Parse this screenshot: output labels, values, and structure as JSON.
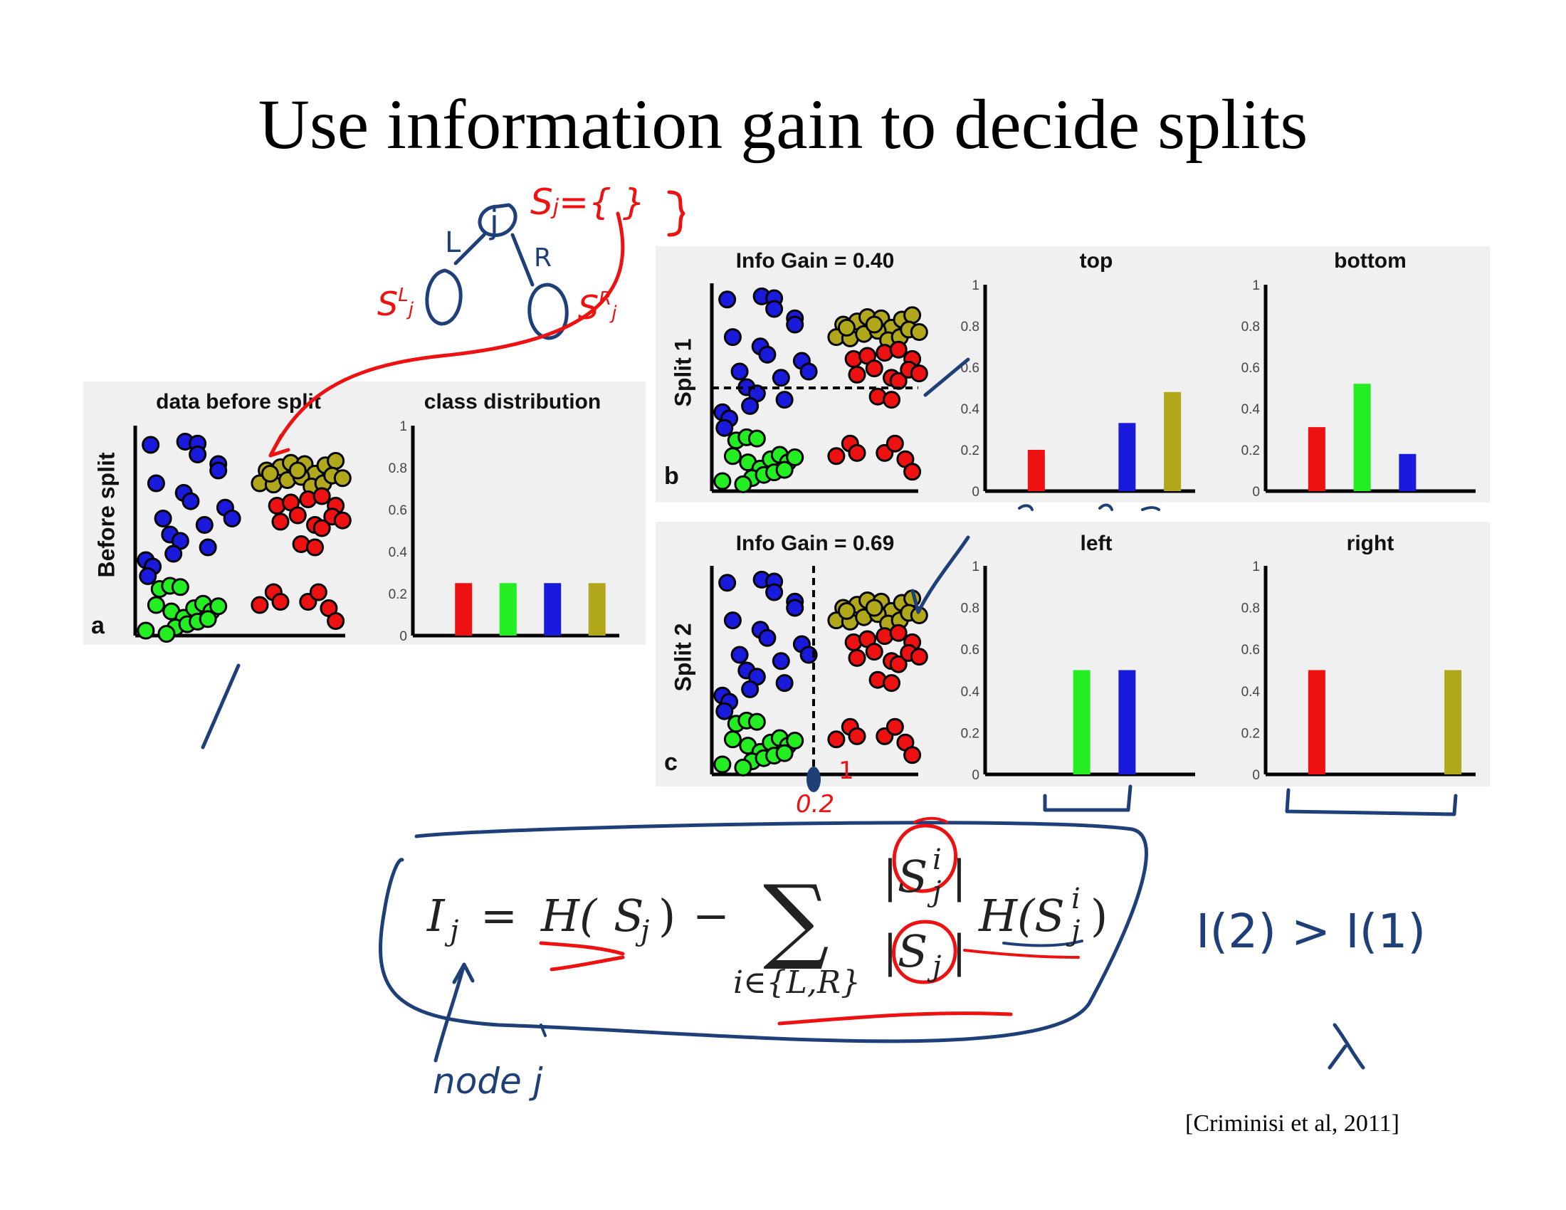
{
  "title": "Use information gain to decide splits",
  "citation": "[Criminisi et al, 2011]",
  "colors": {
    "blue": "#1a1adc",
    "green": "#22ee22",
    "red": "#ee1111",
    "olive": "#b0a81a",
    "ink_blue": "#1f3f78",
    "ink_red": "#ee1111"
  },
  "panel_a": {
    "letter": "a",
    "row_label": "Before split",
    "scatter_title": "data before split",
    "bars_title": "class distribution",
    "chart_data": {
      "type": "bar",
      "categories": [
        "red",
        "green",
        "blue",
        "olive"
      ],
      "values": [
        0.25,
        0.25,
        0.25,
        0.25
      ],
      "ylim": [
        0,
        1
      ],
      "yticks": [
        "0",
        "0.2",
        "0.4",
        "0.6",
        "0.8",
        "1"
      ]
    }
  },
  "panel_b": {
    "letter": "b",
    "row_label": "Split 1",
    "scatter_title": "Info Gain = 0.40",
    "left_title": "top",
    "right_title": "bottom",
    "chart_data": [
      {
        "type": "bar",
        "categories": [
          "red",
          "green",
          "blue",
          "olive"
        ],
        "values": [
          0.2,
          0,
          0.33,
          0.48
        ],
        "ylim": [
          0,
          1
        ]
      },
      {
        "type": "bar",
        "categories": [
          "red",
          "green",
          "blue",
          "olive"
        ],
        "values": [
          0.31,
          0.52,
          0.18,
          0
        ],
        "ylim": [
          0,
          1
        ]
      }
    ]
  },
  "panel_c": {
    "letter": "c",
    "row_label": "Split 2",
    "scatter_title": "Info Gain = 0.69",
    "left_title": "left",
    "right_title": "right",
    "chart_data": [
      {
        "type": "bar",
        "categories": [
          "red",
          "green",
          "blue",
          "olive"
        ],
        "values": [
          0,
          0.5,
          0.5,
          0
        ],
        "ylim": [
          0,
          1
        ]
      },
      {
        "type": "bar",
        "categories": [
          "red",
          "green",
          "blue",
          "olive"
        ],
        "values": [
          0.5,
          0,
          0,
          0.5
        ],
        "ylim": [
          0,
          1
        ]
      }
    ]
  },
  "formula": {
    "lhs": "I",
    "lhs_sub": "j",
    "eq": "=",
    "h": "H(",
    "s": "S",
    "s_sub": "j",
    "close": ")",
    "minus": "−",
    "sigma": "∑",
    "sum_index": "i∈{L,R}",
    "num": "|S",
    "num_sup": "i",
    "num_sub": "j",
    "num_close": "|",
    "den": "|S",
    "den_sub": "j",
    "den_close": "|",
    "h2": "H(S",
    "h2_sup": "i",
    "h2_sub": "j",
    "h2_close": ")"
  },
  "handwriting": {
    "set_def": "S",
    "set_def_sub": "j",
    "set_def_rest": "={   }",
    "node_label": "j",
    "left_label": "L",
    "right_label": "R",
    "left_set": "S",
    "left_set_sub": "j",
    "left_set_sup": "L",
    "right_set": "S",
    "right_set_sub": "j",
    "right_set_sup": "R",
    "node_note": "node j",
    "compare": "I(2) > I(1)",
    "threshold": "0.2",
    "mark": "1"
  }
}
